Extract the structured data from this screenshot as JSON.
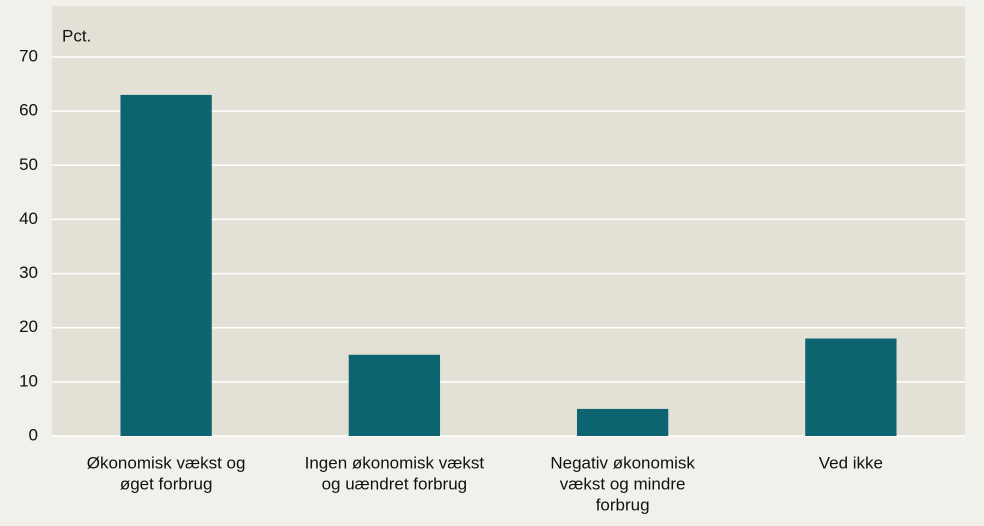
{
  "chart_data": {
    "type": "bar",
    "y_label": "Pct.",
    "categories": [
      [
        "Økonomisk vækst og",
        "øget forbrug"
      ],
      [
        "Ingen økonomisk vækst",
        "og uændret forbrug"
      ],
      [
        "Negativ økonomisk",
        "vækst og mindre",
        "forbrug"
      ],
      [
        "Ved ikke"
      ]
    ],
    "values": [
      63,
      15,
      5,
      18
    ],
    "color": "#0b6470",
    "ylim": [
      0,
      70
    ],
    "yticks": [
      0,
      10,
      20,
      30,
      40,
      50,
      60,
      70
    ],
    "grid": true
  }
}
